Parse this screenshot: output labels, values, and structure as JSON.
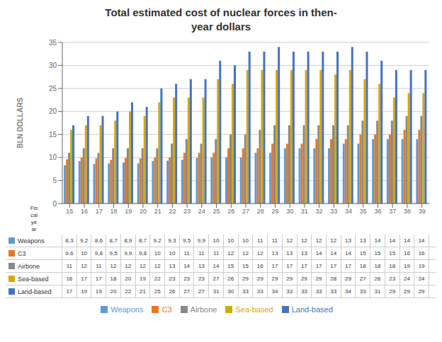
{
  "chart_data": {
    "type": "bar",
    "title": "Total estimated cost of nuclear forces in then-\nyear dollars",
    "xlabel": "Fis\ncal\nye\nar",
    "ylabel": "BLN DOLLARS",
    "categories": [
      "15",
      "16",
      "17",
      "18",
      "19",
      "20",
      "21",
      "22",
      "23",
      "24",
      "25",
      "26",
      "27",
      "28",
      "29",
      "30",
      "31",
      "32",
      "33",
      "34",
      "35",
      "36",
      "37",
      "38",
      "39"
    ],
    "series": [
      {
        "name": "Weapons",
        "color": "#5b9bd5",
        "values": [
          8.3,
          9.2,
          8.6,
          8.7,
          8.9,
          8.7,
          9.2,
          9.3,
          9.5,
          9.9,
          10,
          10,
          10,
          11,
          11,
          12,
          12,
          12,
          12,
          13,
          13,
          14,
          14,
          14,
          14
        ],
        "value_labels": [
          "8,3",
          "9,2",
          "8,6",
          "8,7",
          "8,9",
          "8,7",
          "9,2",
          "9,3",
          "9,5",
          "9,9",
          "10",
          "10",
          "10",
          "11",
          "11",
          "12",
          "12",
          "12",
          "12",
          "13",
          "13",
          "14",
          "14",
          "14",
          "14"
        ]
      },
      {
        "name": "C3",
        "color": "#e87722",
        "values": [
          9.6,
          10,
          9.8,
          9.5,
          9.9,
          9.8,
          10,
          10,
          11,
          11,
          11,
          12,
          12,
          12,
          13,
          13,
          13,
          14,
          14,
          14,
          15,
          15,
          15,
          16,
          16
        ],
        "value_labels": [
          "9,6",
          "10",
          "9,8",
          "9,5",
          "9,9",
          "9,8",
          "10",
          "10",
          "11",
          "11",
          "11",
          "12",
          "12",
          "12",
          "13",
          "13",
          "13",
          "14",
          "14",
          "14",
          "15",
          "15",
          "15",
          "16",
          "16"
        ]
      },
      {
        "name": "Airbone",
        "color": "#888888",
        "values": [
          11,
          12,
          11,
          12,
          12,
          12,
          12,
          13,
          14,
          13,
          14,
          15,
          15,
          16,
          17,
          17,
          17,
          17,
          17,
          17,
          18,
          18,
          18,
          19,
          19
        ],
        "value_labels": [
          "11",
          "12",
          "11",
          "12",
          "12",
          "12",
          "12",
          "13",
          "14",
          "13",
          "14",
          "15",
          "15",
          "16",
          "17",
          "17",
          "17",
          "17",
          "17",
          "17",
          "18",
          "18",
          "18",
          "19",
          "19"
        ]
      },
      {
        "name": "Sea-based",
        "color": "#d4a800",
        "values": [
          16,
          17,
          17,
          18,
          20,
          19,
          22,
          23,
          23,
          23,
          27,
          26,
          29,
          29,
          29,
          29,
          29,
          29,
          28,
          29,
          27,
          26,
          23,
          24,
          24
        ],
        "value_labels": [
          "16",
          "17",
          "17",
          "18",
          "20",
          "19",
          "22",
          "23",
          "23",
          "23",
          "27",
          "26",
          "29",
          "29",
          "29",
          "29",
          "29",
          "29",
          "28",
          "29",
          "27",
          "26",
          "23",
          "24",
          "24"
        ]
      },
      {
        "name": "Land-based",
        "color": "#4472c4",
        "values": [
          17,
          19,
          19,
          20,
          22,
          21,
          25,
          26,
          27,
          27,
          31,
          30,
          33,
          33,
          34,
          33,
          33,
          33,
          33,
          34,
          33,
          31,
          29,
          29,
          29
        ],
        "value_labels": [
          "17",
          "19",
          "19",
          "20",
          "22",
          "21",
          "25",
          "26",
          "27",
          "27",
          "31",
          "30",
          "33",
          "33",
          "34",
          "33",
          "33",
          "33",
          "33",
          "34",
          "33",
          "31",
          "29",
          "29",
          "29"
        ]
      }
    ],
    "ylim": [
      0,
      35
    ],
    "yticks": [
      0,
      5,
      10,
      15,
      20,
      25,
      30,
      35
    ],
    "grid": true,
    "legend": "bottom"
  }
}
